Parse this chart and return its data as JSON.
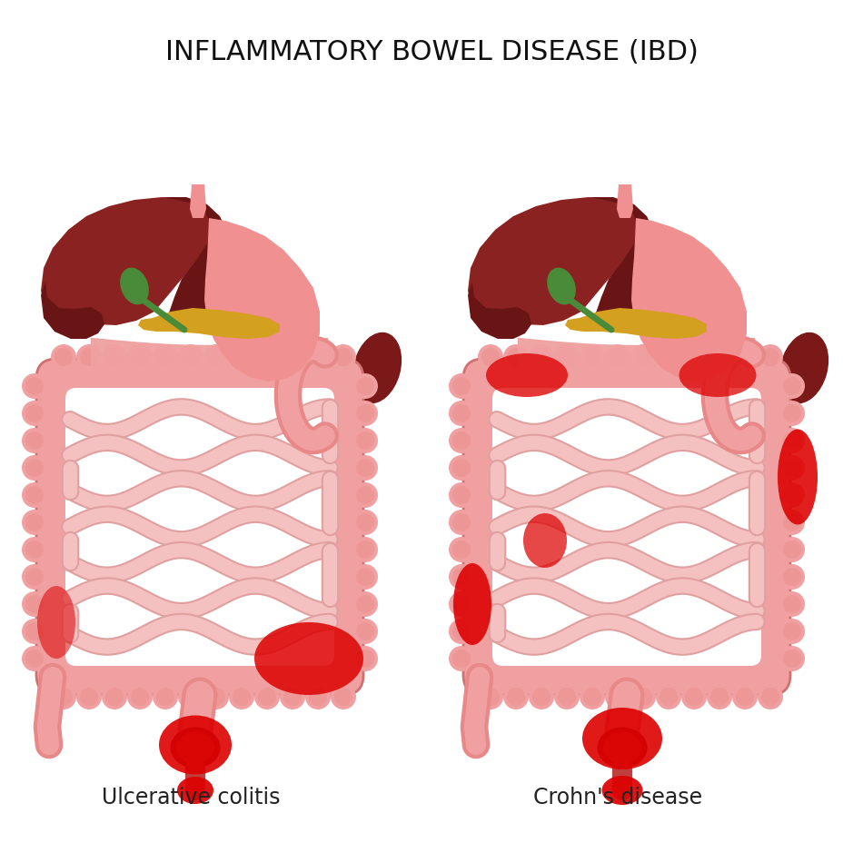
{
  "title": "INFLAMMATORY BOWEL DISEASE (IBD)",
  "label_left": "Ulcerative colitis",
  "label_right": "Crohn's disease",
  "bg_color": "#ffffff",
  "title_fontsize": 22,
  "label_fontsize": 17,
  "title_color": "#111111",
  "label_color": "#222222",
  "liver_color": "#8B2222",
  "liver_dark_color": "#6A1515",
  "stomach_color": "#F09090",
  "gallbladder_color": "#4A8B3A",
  "pancreas_color": "#D4A020",
  "colon_outer": "#F0A0A0",
  "colon_inner": "#E88888",
  "colon_line": "#D07070",
  "small_int_color": "#F5C0C0",
  "small_int_outline": "#E0A0A0",
  "spleen_color": "#7B1818",
  "inflammation_red": "#DD0000",
  "esoph_color": "#F09090",
  "rectum_dark": "#8B1515"
}
